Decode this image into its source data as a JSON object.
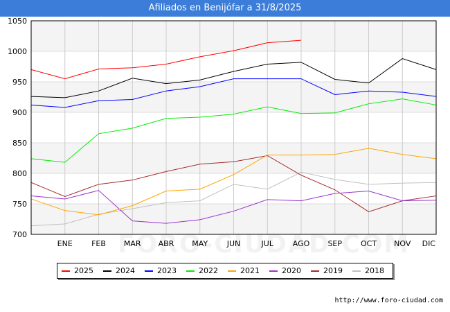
{
  "header": {
    "title": "Afiliados en Benijófar a 31/8/2025"
  },
  "footer": {
    "url": "http://www.foro-ciudad.com"
  },
  "watermark": {
    "text": "FORO-CIUDAD.COM"
  },
  "chart_data": {
    "type": "line",
    "title": "Afiliados en Benijófar a 31/8/2025",
    "xlabel": "",
    "ylabel": "",
    "categories": [
      "",
      "ENE",
      "FEB",
      "MAR",
      "ABR",
      "MAY",
      "JUN",
      "JUL",
      "AGO",
      "SEP",
      "OCT",
      "NOV",
      "DIC"
    ],
    "ylim": [
      700,
      1050
    ],
    "yticks": [
      700,
      750,
      800,
      850,
      900,
      950,
      1000,
      1050
    ],
    "grid": true,
    "legend_position": "bottom",
    "series": [
      {
        "name": "2025",
        "color": "#ff0000",
        "values": [
          970,
          955,
          971,
          973,
          979,
          991,
          1001,
          1014,
          1018,
          null,
          null,
          null,
          null
        ]
      },
      {
        "name": "2024",
        "color": "#000000",
        "values": [
          926,
          924,
          935,
          956,
          947,
          953,
          967,
          979,
          982,
          954,
          948,
          988,
          970
        ]
      },
      {
        "name": "2023",
        "color": "#0000ff",
        "values": [
          912,
          908,
          919,
          921,
          935,
          942,
          955,
          955,
          955,
          929,
          935,
          933,
          926
        ]
      },
      {
        "name": "2022",
        "color": "#00ee00",
        "values": [
          824,
          818,
          865,
          874,
          890,
          892,
          897,
          909,
          898,
          899,
          914,
          922,
          912
        ]
      },
      {
        "name": "2021",
        "color": "#ffa500",
        "values": [
          758,
          739,
          732,
          747,
          771,
          774,
          798,
          830,
          830,
          831,
          841,
          831,
          824
        ]
      },
      {
        "name": "2020",
        "color": "#9a32cd",
        "values": [
          763,
          758,
          772,
          722,
          718,
          724,
          738,
          757,
          755,
          767,
          771,
          755,
          756
        ]
      },
      {
        "name": "2019",
        "color": "#a52a2a",
        "values": [
          785,
          762,
          782,
          789,
          803,
          815,
          819,
          829,
          797,
          773,
          737,
          755,
          763
        ]
      },
      {
        "name": "2018",
        "color": "#c0c0c0",
        "values": [
          714,
          717,
          733,
          742,
          752,
          755,
          782,
          774,
          802,
          790,
          782,
          784,
          785
        ]
      }
    ]
  }
}
